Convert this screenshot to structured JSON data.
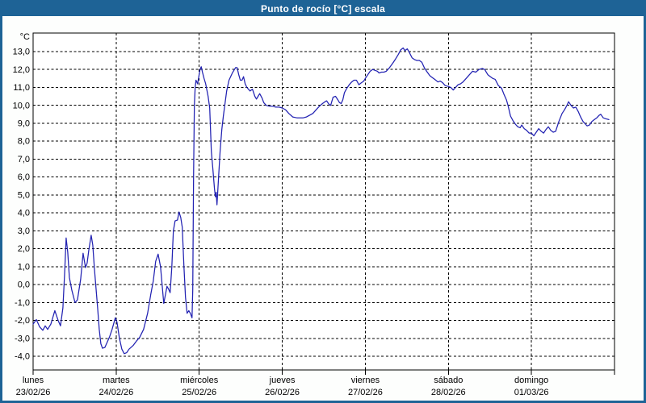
{
  "window": {
    "title": "Punto de rocío [°C] escala",
    "titlebar_color": "#1E6396",
    "frame_color": "#1E6396",
    "background_color": "#FDFEFD"
  },
  "chart_data": {
    "type": "line",
    "title": "Punto de rocío [°C] escala",
    "grid": "dashed",
    "legend": "none",
    "line_color": "#2222B2",
    "plot_background": "#FFFFFF",
    "grid_color": "#000000",
    "y_axis": {
      "label": "°C",
      "min": -4,
      "max": 13,
      "step": 1,
      "decimal_separator": ",",
      "tick_labels": [
        "13,0",
        "12,0",
        "11,0",
        "10,0",
        "9,0",
        "8,0",
        "7,0",
        "6,0",
        "5,0",
        "4,0",
        "3,0",
        "2,0",
        "1,0",
        "0,0",
        "-1,0",
        "-2,0",
        "-3,0",
        "-4,0"
      ]
    },
    "x_axis": {
      "days": [
        {
          "name": "lunes",
          "date": "23/02/26"
        },
        {
          "name": "martes",
          "date": "24/02/26"
        },
        {
          "name": "miércoles",
          "date": "25/02/26"
        },
        {
          "name": "jueves",
          "date": "26/02/26"
        },
        {
          "name": "viernes",
          "date": "27/02/26"
        },
        {
          "name": "sábado",
          "date": "28/02/26"
        },
        {
          "name": "domingo",
          "date": "01/03/26"
        }
      ]
    },
    "series": [
      {
        "name": "Punto de rocío",
        "unit": "°C",
        "points": [
          [
            0.0,
            -2.2
          ],
          [
            0.039,
            -1.95
          ],
          [
            0.078,
            -2.35
          ],
          [
            0.117,
            -2.55
          ],
          [
            0.146,
            -2.3
          ],
          [
            0.175,
            -2.5
          ],
          [
            0.214,
            -2.2
          ],
          [
            0.262,
            -1.45
          ],
          [
            0.301,
            -2.0
          ],
          [
            0.33,
            -2.3
          ],
          [
            0.359,
            -1.3
          ],
          [
            0.379,
            0.6
          ],
          [
            0.398,
            2.6
          ],
          [
            0.417,
            1.8
          ],
          [
            0.437,
            0.4
          ],
          [
            0.466,
            -0.3
          ],
          [
            0.505,
            -1.0
          ],
          [
            0.534,
            -0.85
          ],
          [
            0.573,
            0.3
          ],
          [
            0.602,
            1.75
          ],
          [
            0.631,
            0.95
          ],
          [
            0.65,
            1.2
          ],
          [
            0.67,
            1.9
          ],
          [
            0.699,
            2.75
          ],
          [
            0.718,
            2.2
          ],
          [
            0.738,
            0.9
          ],
          [
            0.757,
            -0.2
          ],
          [
            0.777,
            -1.3
          ],
          [
            0.796,
            -2.5
          ],
          [
            0.816,
            -3.3
          ],
          [
            0.835,
            -3.55
          ],
          [
            0.864,
            -3.5
          ],
          [
            0.893,
            -3.2
          ],
          [
            0.922,
            -2.9
          ],
          [
            0.951,
            -2.5
          ],
          [
            0.99,
            -1.85
          ],
          [
            1.01,
            -2.1
          ],
          [
            1.039,
            -3.0
          ],
          [
            1.068,
            -3.6
          ],
          [
            1.097,
            -3.85
          ],
          [
            1.126,
            -3.8
          ],
          [
            1.155,
            -3.6
          ],
          [
            1.204,
            -3.4
          ],
          [
            1.243,
            -3.15
          ],
          [
            1.282,
            -2.95
          ],
          [
            1.33,
            -2.5
          ],
          [
            1.379,
            -1.6
          ],
          [
            1.417,
            -0.55
          ],
          [
            1.447,
            0.2
          ],
          [
            1.476,
            1.3
          ],
          [
            1.505,
            1.7
          ],
          [
            1.534,
            1.0
          ],
          [
            1.573,
            -1.05
          ],
          [
            1.612,
            -0.1
          ],
          [
            1.631,
            -0.25
          ],
          [
            1.65,
            -0.45
          ],
          [
            1.67,
            1.0
          ],
          [
            1.689,
            3.0
          ],
          [
            1.709,
            3.55
          ],
          [
            1.738,
            3.6
          ],
          [
            1.757,
            4.05
          ],
          [
            1.777,
            3.75
          ],
          [
            1.796,
            3.2
          ],
          [
            1.816,
            1.0
          ],
          [
            1.835,
            -0.7
          ],
          [
            1.854,
            -1.6
          ],
          [
            1.874,
            -1.45
          ],
          [
            1.893,
            -1.6
          ],
          [
            1.913,
            -1.85
          ],
          [
            1.922,
            -0.3
          ],
          [
            1.932,
            6.0
          ],
          [
            1.942,
            10.0
          ],
          [
            1.951,
            11.0
          ],
          [
            1.961,
            11.4
          ],
          [
            1.98,
            11.2
          ],
          [
            2.01,
            12.0
          ],
          [
            2.024,
            12.15
          ],
          [
            2.039,
            11.85
          ],
          [
            2.058,
            11.5
          ],
          [
            2.078,
            11.2
          ],
          [
            2.092,
            10.85
          ],
          [
            2.107,
            10.5
          ],
          [
            2.126,
            9.85
          ],
          [
            2.136,
            8.65
          ],
          [
            2.146,
            7.45
          ],
          [
            2.165,
            6.4
          ],
          [
            2.184,
            5.35
          ],
          [
            2.194,
            4.9
          ],
          [
            2.204,
            5.15
          ],
          [
            2.214,
            4.45
          ],
          [
            2.233,
            6.0
          ],
          [
            2.252,
            7.45
          ],
          [
            2.272,
            8.65
          ],
          [
            2.291,
            9.4
          ],
          [
            2.33,
            10.8
          ],
          [
            2.359,
            11.4
          ],
          [
            2.398,
            11.8
          ],
          [
            2.437,
            12.1
          ],
          [
            2.456,
            12.1
          ],
          [
            2.476,
            11.7
          ],
          [
            2.495,
            11.4
          ],
          [
            2.515,
            11.4
          ],
          [
            2.534,
            11.6
          ],
          [
            2.553,
            11.2
          ],
          [
            2.573,
            11.0
          ],
          [
            2.592,
            10.9
          ],
          [
            2.612,
            10.8
          ],
          [
            2.641,
            10.9
          ],
          [
            2.67,
            10.5
          ],
          [
            2.689,
            10.35
          ],
          [
            2.709,
            10.5
          ],
          [
            2.728,
            10.65
          ],
          [
            2.757,
            10.4
          ],
          [
            2.777,
            10.15
          ],
          [
            2.806,
            10.0
          ],
          [
            2.845,
            9.95
          ],
          [
            2.883,
            9.95
          ],
          [
            2.922,
            9.9
          ],
          [
            2.961,
            9.9
          ],
          [
            3.0,
            9.85
          ],
          [
            3.039,
            9.75
          ],
          [
            3.078,
            9.55
          ],
          [
            3.126,
            9.35
          ],
          [
            3.175,
            9.3
          ],
          [
            3.214,
            9.3
          ],
          [
            3.252,
            9.3
          ],
          [
            3.291,
            9.35
          ],
          [
            3.33,
            9.45
          ],
          [
            3.369,
            9.55
          ],
          [
            3.408,
            9.75
          ],
          [
            3.447,
            9.95
          ],
          [
            3.485,
            10.1
          ],
          [
            3.515,
            10.2
          ],
          [
            3.534,
            10.25
          ],
          [
            3.563,
            10.05
          ],
          [
            3.583,
            10.0
          ],
          [
            3.612,
            10.45
          ],
          [
            3.641,
            10.5
          ],
          [
            3.67,
            10.3
          ],
          [
            3.689,
            10.15
          ],
          [
            3.709,
            10.1
          ],
          [
            3.728,
            10.3
          ],
          [
            3.748,
            10.7
          ],
          [
            3.777,
            10.95
          ],
          [
            3.806,
            11.15
          ],
          [
            3.835,
            11.3
          ],
          [
            3.864,
            11.4
          ],
          [
            3.893,
            11.4
          ],
          [
            3.922,
            11.15
          ],
          [
            3.951,
            11.25
          ],
          [
            3.981,
            11.35
          ],
          [
            4.0,
            11.5
          ],
          [
            4.029,
            11.7
          ],
          [
            4.058,
            11.9
          ],
          [
            4.087,
            12.0
          ],
          [
            4.117,
            11.95
          ],
          [
            4.146,
            11.9
          ],
          [
            4.165,
            11.8
          ],
          [
            4.194,
            11.85
          ],
          [
            4.223,
            11.85
          ],
          [
            4.252,
            11.9
          ],
          [
            4.291,
            12.1
          ],
          [
            4.33,
            12.35
          ],
          [
            4.359,
            12.55
          ],
          [
            4.398,
            12.85
          ],
          [
            4.427,
            13.1
          ],
          [
            4.456,
            13.2
          ],
          [
            4.476,
            13.05
          ],
          [
            4.505,
            13.15
          ],
          [
            4.534,
            12.9
          ],
          [
            4.563,
            12.65
          ],
          [
            4.592,
            12.55
          ],
          [
            4.621,
            12.5
          ],
          [
            4.65,
            12.5
          ],
          [
            4.68,
            12.4
          ],
          [
            4.709,
            12.1
          ],
          [
            4.738,
            11.9
          ],
          [
            4.777,
            11.65
          ],
          [
            4.806,
            11.55
          ],
          [
            4.835,
            11.45
          ],
          [
            4.874,
            11.3
          ],
          [
            4.903,
            11.35
          ],
          [
            4.932,
            11.25
          ],
          [
            4.961,
            11.1
          ],
          [
            5.0,
            11.05
          ],
          [
            5.029,
            11.0
          ],
          [
            5.058,
            10.85
          ],
          [
            5.087,
            11.0
          ],
          [
            5.117,
            11.15
          ],
          [
            5.146,
            11.2
          ],
          [
            5.175,
            11.3
          ],
          [
            5.214,
            11.5
          ],
          [
            5.252,
            11.7
          ],
          [
            5.291,
            11.9
          ],
          [
            5.33,
            11.85
          ],
          [
            5.369,
            12.0
          ],
          [
            5.408,
            12.05
          ],
          [
            5.437,
            12.0
          ],
          [
            5.476,
            11.7
          ],
          [
            5.505,
            11.6
          ],
          [
            5.534,
            11.5
          ],
          [
            5.563,
            11.45
          ],
          [
            5.602,
            11.1
          ],
          [
            5.641,
            10.95
          ],
          [
            5.67,
            10.6
          ],
          [
            5.699,
            10.3
          ],
          [
            5.718,
            10.0
          ],
          [
            5.748,
            9.4
          ],
          [
            5.777,
            9.15
          ],
          [
            5.806,
            8.95
          ],
          [
            5.835,
            8.8
          ],
          [
            5.864,
            8.75
          ],
          [
            5.883,
            8.9
          ],
          [
            5.913,
            8.7
          ],
          [
            5.942,
            8.6
          ],
          [
            5.971,
            8.45
          ],
          [
            6.0,
            8.45
          ],
          [
            6.029,
            8.3
          ],
          [
            6.058,
            8.5
          ],
          [
            6.087,
            8.7
          ],
          [
            6.117,
            8.55
          ],
          [
            6.146,
            8.45
          ],
          [
            6.175,
            8.65
          ],
          [
            6.204,
            8.8
          ],
          [
            6.233,
            8.6
          ],
          [
            6.262,
            8.5
          ],
          [
            6.291,
            8.55
          ],
          [
            6.33,
            9.1
          ],
          [
            6.369,
            9.55
          ],
          [
            6.398,
            9.75
          ],
          [
            6.427,
            10.0
          ],
          [
            6.447,
            10.2
          ],
          [
            6.476,
            10.0
          ],
          [
            6.505,
            9.85
          ],
          [
            6.534,
            9.9
          ],
          [
            6.563,
            9.65
          ],
          [
            6.592,
            9.35
          ],
          [
            6.621,
            9.1
          ],
          [
            6.65,
            8.95
          ],
          [
            6.67,
            8.85
          ],
          [
            6.699,
            8.9
          ],
          [
            6.728,
            9.1
          ],
          [
            6.757,
            9.2
          ],
          [
            6.786,
            9.3
          ],
          [
            6.816,
            9.45
          ],
          [
            6.835,
            9.5
          ],
          [
            6.864,
            9.3
          ],
          [
            6.893,
            9.25
          ],
          [
            6.932,
            9.2
          ]
        ]
      }
    ]
  }
}
